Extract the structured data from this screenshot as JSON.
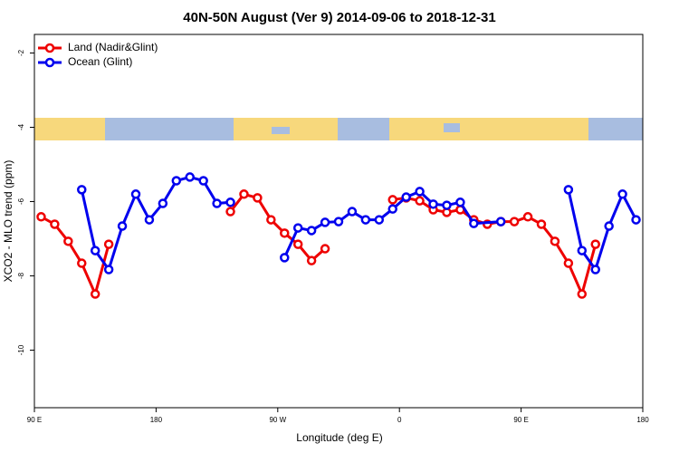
{
  "chart_data": {
    "type": "line",
    "title": "40N-50N August (Ver 9)   2014-09-06 to 2018-12-31",
    "x_label": "Longitude (deg E)",
    "y_label": "XCO2 - MLO trend (ppm)",
    "xlim": [
      90,
      540
    ],
    "xticks": [
      {
        "value": 90,
        "label": "90 E"
      },
      {
        "value": 180,
        "label": "180"
      },
      {
        "value": 270,
        "label": "90 W"
      },
      {
        "value": 360,
        "label": "0"
      },
      {
        "value": 450,
        "label": "90 E"
      },
      {
        "value": 540,
        "label": "180"
      }
    ],
    "ylim": [
      -11.55,
      -1.5
    ],
    "yticks": [
      -2,
      -4,
      -6,
      -8,
      -10
    ],
    "legend": "top-left",
    "series": [
      {
        "name": "Land (Nadir&Glint)",
        "color": "#ee0000",
        "x": [
          95,
          105,
          115,
          125,
          135,
          145,
          190,
          235,
          245,
          255,
          265,
          275,
          285,
          295,
          305,
          330,
          355,
          365,
          375,
          385,
          395,
          405,
          415,
          425,
          435,
          445,
          455,
          465,
          475,
          485,
          495,
          505
        ],
        "values": [
          -6.41,
          -6.61,
          -7.07,
          -7.66,
          -8.49,
          -7.15,
          null,
          -6.27,
          -5.8,
          -5.9,
          -6.49,
          -6.85,
          -7.15,
          -7.59,
          -7.27,
          null,
          -5.95,
          -5.9,
          -5.98,
          -6.22,
          -6.29,
          -6.22,
          -6.49,
          -6.61,
          -6.54,
          -6.54,
          -6.41,
          -6.61,
          -7.07,
          -7.66,
          -8.49,
          -7.15
        ]
      },
      {
        "name": "Ocean (Glint)",
        "color": "#0000ee",
        "x": [
          125,
          135,
          145,
          155,
          165,
          175,
          185,
          195,
          205,
          215,
          225,
          235,
          255,
          275,
          285,
          295,
          305,
          315,
          325,
          335,
          345,
          355,
          365,
          375,
          385,
          395,
          405,
          415,
          435,
          460,
          485,
          495,
          505,
          515,
          525,
          535
        ],
        "values": [
          -5.68,
          -7.32,
          -7.83,
          -6.66,
          -5.8,
          -6.49,
          -6.05,
          -5.44,
          -5.34,
          -5.44,
          -6.05,
          -6.02,
          null,
          -7.51,
          -6.71,
          -6.78,
          -6.56,
          -6.54,
          -6.27,
          -6.49,
          -6.49,
          -6.2,
          -5.88,
          -5.73,
          -6.07,
          -6.1,
          -6.02,
          -6.59,
          -6.54,
          null,
          -5.68,
          -7.32,
          -7.83,
          -6.66,
          -5.8,
          -6.49
        ]
      }
    ]
  }
}
